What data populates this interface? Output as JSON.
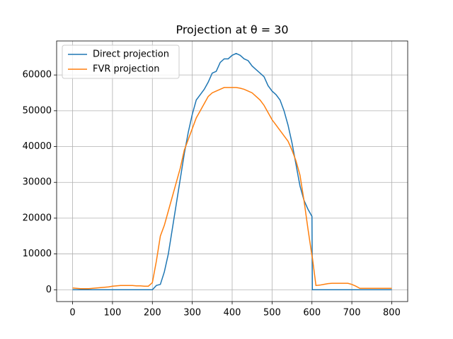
{
  "chart_data": {
    "type": "line",
    "title": "Projection at θ = 30",
    "x": [
      0,
      10,
      20,
      30,
      40,
      50,
      60,
      70,
      80,
      90,
      100,
      110,
      120,
      130,
      140,
      150,
      160,
      170,
      180,
      190,
      200,
      210,
      220,
      230,
      240,
      250,
      260,
      270,
      280,
      290,
      300,
      310,
      320,
      330,
      340,
      350,
      360,
      370,
      380,
      390,
      400,
      410,
      420,
      430,
      440,
      450,
      460,
      470,
      480,
      490,
      500,
      510,
      520,
      530,
      540,
      550,
      560,
      570,
      580,
      590,
      600,
      601,
      610,
      620,
      630,
      640,
      650,
      660,
      670,
      680,
      690,
      700,
      710,
      720,
      730,
      740,
      750,
      760,
      770,
      780,
      790,
      800
    ],
    "series": [
      {
        "name": "Direct projection",
        "color": "#1f77b4",
        "values": [
          0,
          0,
          0,
          0,
          0,
          0,
          0,
          0,
          0,
          0,
          0,
          0,
          0,
          0,
          0,
          0,
          0,
          0,
          0,
          0,
          0,
          1200,
          1500,
          5000,
          10000,
          17000,
          24000,
          31000,
          38000,
          44000,
          49000,
          53000,
          54500,
          56000,
          58000,
          60500,
          61000,
          63500,
          64500,
          64500,
          65500,
          66000,
          65500,
          64500,
          64000,
          62500,
          61500,
          60500,
          59500,
          57000,
          55500,
          54500,
          53000,
          50000,
          46000,
          41000,
          35000,
          29000,
          25000,
          22500,
          20500,
          0,
          0,
          0,
          0,
          0,
          0,
          0,
          0,
          0,
          0,
          0,
          0,
          0,
          0,
          0,
          0,
          0,
          0,
          0,
          0,
          0
        ]
      },
      {
        "name": "FVR projection",
        "color": "#ff7f0e",
        "values": [
          500,
          400,
          300,
          300,
          300,
          400,
          500,
          600,
          700,
          800,
          1000,
          1100,
          1200,
          1200,
          1200,
          1200,
          1100,
          1100,
          1000,
          1000,
          2000,
          8000,
          15000,
          18000,
          22000,
          26000,
          30000,
          34000,
          39000,
          42000,
          45000,
          48000,
          50000,
          52000,
          54000,
          55000,
          55500,
          56000,
          56500,
          56500,
          56500,
          56500,
          56300,
          56000,
          55500,
          55000,
          54000,
          53000,
          51500,
          49500,
          47500,
          46000,
          44500,
          43000,
          41500,
          39000,
          36000,
          32000,
          25000,
          17000,
          9500,
          9000,
          1200,
          1300,
          1500,
          1700,
          1800,
          1800,
          1800,
          1800,
          1800,
          1500,
          1000,
          400,
          400,
          400,
          400,
          400,
          400,
          400,
          400,
          400
        ]
      }
    ],
    "xlim": [
      -40,
      840
    ],
    "xticks": [
      0,
      100,
      200,
      300,
      400,
      500,
      600,
      700,
      800
    ],
    "ylim": [
      -3300,
      69500
    ],
    "yticks": [
      0,
      10000,
      20000,
      30000,
      40000,
      50000,
      60000
    ],
    "grid": true,
    "legend": "upper-left"
  }
}
